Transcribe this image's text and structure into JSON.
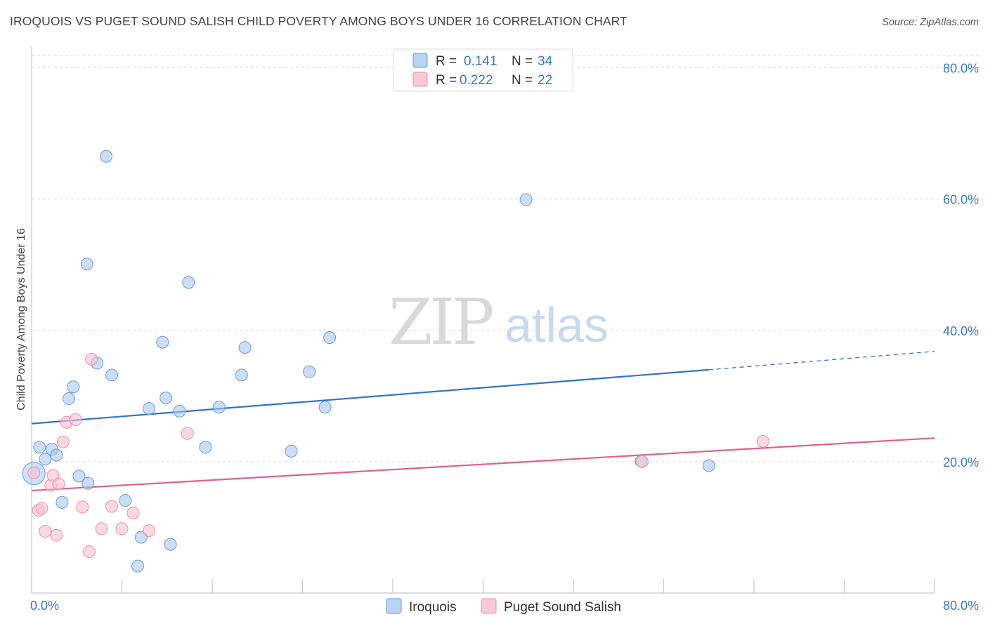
{
  "title": "IROQUOIS VS PUGET SOUND SALISH CHILD POVERTY AMONG BOYS UNDER 16 CORRELATION CHART",
  "source": "Source: ZipAtlas.com",
  "watermark": {
    "part1": "ZIP",
    "part2": "atlas"
  },
  "legend_top": {
    "r_label": "R =",
    "n_label": "N =",
    "rows": [
      {
        "r": "0.141",
        "n": "34"
      },
      {
        "r": "0.222",
        "n": "22"
      }
    ]
  },
  "chart_data": {
    "type": "scatter",
    "title": "IROQUOIS VS PUGET SOUND SALISH CHILD POVERTY AMONG BOYS UNDER 16 CORRELATION CHART",
    "xlabel": "",
    "ylabel": "Child Poverty Among Boys Under 16",
    "xlim": [
      0,
      80
    ],
    "ylim": [
      0,
      80
    ],
    "x_tick_labels": [
      "0.0%",
      "80.0%"
    ],
    "y_ticks": [
      20,
      40,
      60,
      80
    ],
    "y_tick_labels": [
      "20.0%",
      "40.0%",
      "60.0%",
      "80.0%"
    ],
    "grid": true,
    "legend_position": "bottom",
    "series": [
      {
        "name": "Iroquois",
        "color": "#a8c8f0",
        "stroke": "#6a9bd8",
        "line_color": "#2f72d0",
        "r": 0.141,
        "n": 34,
        "trend": {
          "x0": 0,
          "y0": 25.8,
          "x1": 60,
          "y1": 34.0,
          "x_dash_end": 80,
          "y_dash_end": 36.8
        },
        "points": [
          [
            0.2,
            18.2
          ],
          [
            0.7,
            22.2
          ],
          [
            1.2,
            20.4
          ],
          [
            1.8,
            21.9
          ],
          [
            2.2,
            21.0
          ],
          [
            2.7,
            13.8
          ],
          [
            3.3,
            29.6
          ],
          [
            3.7,
            31.4
          ],
          [
            4.2,
            17.8
          ],
          [
            5.0,
            16.7
          ],
          [
            4.9,
            50.1
          ],
          [
            5.8,
            35.0
          ],
          [
            6.6,
            66.5
          ],
          [
            7.1,
            33.2
          ],
          [
            8.3,
            14.1
          ],
          [
            9.4,
            4.1
          ],
          [
            9.7,
            8.5
          ],
          [
            10.4,
            28.1
          ],
          [
            11.6,
            38.2
          ],
          [
            11.9,
            29.7
          ],
          [
            12.3,
            7.4
          ],
          [
            13.1,
            27.7
          ],
          [
            13.9,
            47.3
          ],
          [
            15.4,
            22.2
          ],
          [
            16.6,
            28.3
          ],
          [
            18.9,
            37.4
          ],
          [
            18.6,
            33.2
          ],
          [
            23.0,
            21.6
          ],
          [
            24.6,
            33.7
          ],
          [
            26.0,
            28.3
          ],
          [
            26.4,
            38.9
          ],
          [
            43.8,
            59.9
          ],
          [
            54.0,
            20.1
          ],
          [
            60.0,
            19.4
          ]
        ]
      },
      {
        "name": "Puget Sound Salish",
        "color": "#f8c0d0",
        "stroke": "#e890aa",
        "line_color": "#e0608c",
        "r": 0.222,
        "n": 22,
        "trend": {
          "x0": 0,
          "y0": 15.6,
          "x1": 80,
          "y1": 23.6
        },
        "points": [
          [
            0.2,
            18.3
          ],
          [
            0.6,
            12.6
          ],
          [
            0.9,
            12.9
          ],
          [
            1.2,
            9.4
          ],
          [
            1.7,
            16.4
          ],
          [
            1.9,
            17.9
          ],
          [
            2.2,
            8.8
          ],
          [
            2.4,
            16.6
          ],
          [
            2.8,
            23.0
          ],
          [
            3.1,
            26.0
          ],
          [
            3.9,
            26.4
          ],
          [
            4.5,
            13.1
          ],
          [
            5.1,
            6.3
          ],
          [
            5.3,
            35.6
          ],
          [
            6.2,
            9.8
          ],
          [
            7.1,
            13.2
          ],
          [
            8.0,
            9.8
          ],
          [
            9.0,
            12.2
          ],
          [
            10.4,
            9.5
          ],
          [
            13.8,
            24.3
          ],
          [
            54.1,
            20.0
          ],
          [
            64.8,
            23.1
          ]
        ]
      }
    ]
  }
}
